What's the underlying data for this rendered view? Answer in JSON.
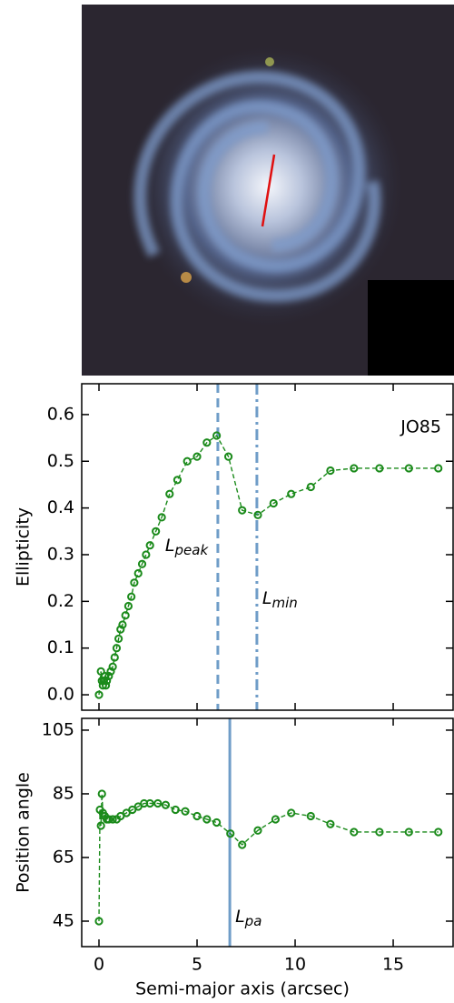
{
  "chart_data": [
    {
      "type": "line",
      "ylabel": "Ellipticity",
      "annotation": "JO85",
      "x": [
        0,
        0.1,
        0.15,
        0.2,
        0.25,
        0.3,
        0.35,
        0.4,
        0.5,
        0.6,
        0.7,
        0.8,
        0.9,
        1.0,
        1.1,
        1.2,
        1.35,
        1.5,
        1.65,
        1.8,
        2.0,
        2.2,
        2.4,
        2.6,
        2.9,
        3.2,
        3.6,
        4.0,
        4.5,
        5.0,
        5.5,
        6.0,
        6.6,
        7.3,
        8.1,
        8.9,
        9.8,
        10.8,
        11.8,
        13.0,
        14.3,
        15.8,
        17.3
      ],
      "series": [
        {
          "color": "#1a8a1a",
          "values": [
            0.0,
            0.05,
            0.03,
            0.02,
            0.03,
            0.04,
            0.02,
            0.03,
            0.04,
            0.05,
            0.06,
            0.08,
            0.1,
            0.12,
            0.14,
            0.15,
            0.17,
            0.19,
            0.21,
            0.24,
            0.26,
            0.28,
            0.3,
            0.32,
            0.35,
            0.38,
            0.43,
            0.46,
            0.5,
            0.51,
            0.54,
            0.555,
            0.51,
            0.395,
            0.385,
            0.41,
            0.43,
            0.445,
            0.48,
            0.485,
            0.485,
            0.485,
            0.485
          ]
        }
      ],
      "vlines": [
        {
          "x": 6.06,
          "label": "L",
          "subscript": "peak",
          "style": "dashed",
          "color": "#6f9dc8"
        },
        {
          "x": 8.05,
          "label": "L",
          "subscript": "min",
          "style": "dashdot",
          "color": "#6f9dc8"
        }
      ],
      "xlim": [
        -0.88,
        18.1
      ],
      "xticks": [
        0,
        5,
        10,
        15
      ],
      "ylim": [
        -0.033,
        0.666
      ],
      "yticks": [
        {
          "value": 0,
          "label": "0.0"
        },
        0.1,
        0.2,
        0.3,
        0.4,
        0.5,
        0.6
      ]
    },
    {
      "type": "line",
      "ylabel": "Position angle",
      "xlabel": "Semi-major axis (arcsec)",
      "x": [
        0,
        0.05,
        0.1,
        0.15,
        0.2,
        0.3,
        0.4,
        0.5,
        0.7,
        0.9,
        1.1,
        1.4,
        1.7,
        2.0,
        2.3,
        2.6,
        3.0,
        3.4,
        3.9,
        4.4,
        5.0,
        5.5,
        6.0,
        6.7,
        7.3,
        8.1,
        9.0,
        9.8,
        10.8,
        11.8,
        13.0,
        14.3,
        15.8,
        17.3
      ],
      "series": [
        {
          "color": "#1a8a1a",
          "values": [
            45,
            80,
            75,
            85,
            79,
            78,
            77,
            77,
            77,
            77,
            78,
            79,
            80,
            81,
            82,
            82,
            82,
            81.5,
            80,
            79.5,
            78,
            77,
            76,
            72.5,
            69,
            73.5,
            77,
            79,
            78,
            75.5,
            73,
            73,
            73,
            73
          ]
        }
      ],
      "vlines": [
        {
          "x": 6.67,
          "label": "L",
          "subscript": "pa",
          "style": "solid",
          "color": "#6f9dc8"
        }
      ],
      "xlim": [
        -0.88,
        18.1
      ],
      "xticks": [
        0,
        5,
        10,
        15
      ],
      "ylim": [
        37,
        108.7
      ],
      "yticks": [
        45,
        65,
        85,
        105
      ]
    }
  ]
}
